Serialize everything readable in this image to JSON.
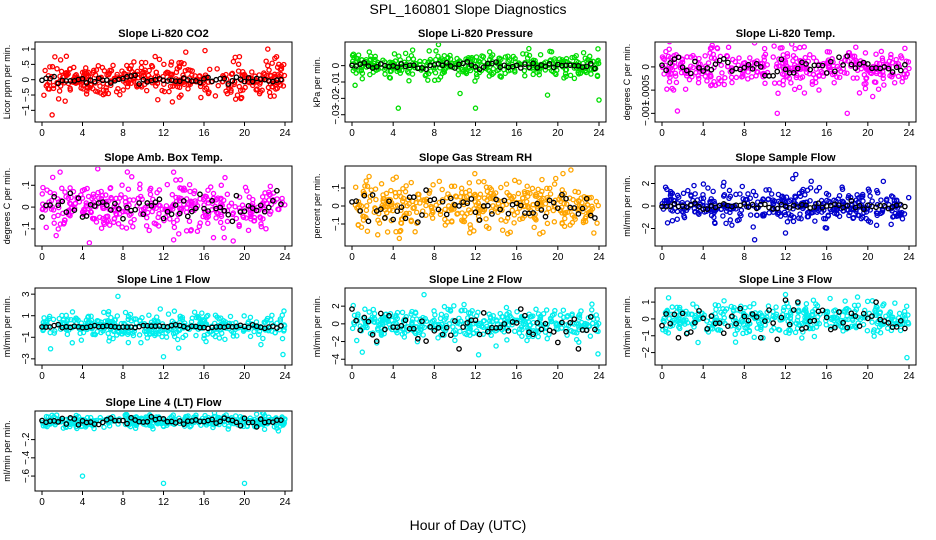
{
  "page": {
    "title": "SPL_160801  Slope Diagnostics",
    "xlabel": "Hour of Day (UTC)"
  },
  "chart_data": [
    {
      "type": "scatter",
      "title": "Slope Li-820 CO2",
      "ylabel": "Licor ppm per min.",
      "xlabel": "",
      "xlim": [
        0,
        24
      ],
      "xticks": [
        0,
        4,
        8,
        12,
        16,
        20,
        24
      ],
      "ylim": [
        -1.25,
        1.1
      ],
      "yticks": [
        -1.0,
        -0.5,
        0.0,
        0.5,
        1.0
      ],
      "colors": {
        "points": "#ff0000",
        "mean": "#000000"
      },
      "series": [
        {
          "name": "",
          "spread": 0.28,
          "outliers": [
            [
              1.0,
              -1.15
            ],
            [
              14.2,
              0.9
            ],
            [
              16.1,
              0.95
            ],
            [
              19.5,
              0.75
            ],
            [
              22.3,
              1.0
            ],
            [
              23.0,
              0.7
            ]
          ]
        }
      ],
      "mean_amplitude": 0.06
    },
    {
      "type": "scatter",
      "title": "Slope Li-820 Pressure",
      "ylabel": "kPa per min.",
      "xlabel": "",
      "xlim": [
        0,
        24
      ],
      "xticks": [
        0,
        4,
        8,
        12,
        16,
        20,
        24
      ],
      "ylim": [
        -0.032,
        0.012
      ],
      "yticks": [
        -0.03,
        -0.02,
        -0.01,
        0.0
      ],
      "colors": {
        "points": "#00dd00",
        "mean": "#000000"
      },
      "series": [
        {
          "name": "",
          "spread": 0.0035,
          "outliers": [
            [
              0.3,
              -0.012
            ],
            [
              1.0,
              -0.008
            ],
            [
              4.5,
              -0.026
            ],
            [
              7.5,
              0.009
            ],
            [
              10.5,
              -0.017
            ],
            [
              12.0,
              -0.026
            ],
            [
              19.0,
              -0.018
            ],
            [
              24.0,
              -0.021
            ]
          ]
        }
      ],
      "mean_amplitude": 0.001
    },
    {
      "type": "scatter",
      "title": "Slope Li-820 Temp.",
      "ylabel": "degrees C per min.",
      "xlabel": "",
      "xlim": [
        0,
        24
      ],
      "xticks": [
        0,
        4,
        8,
        12,
        16,
        20,
        24
      ],
      "ylim": [
        -0.0011,
        0.00045
      ],
      "yticks": [
        -0.001,
        -0.0005,
        0.0
      ],
      "colors": {
        "points": "#ff00ff",
        "mean": "#000000"
      },
      "series": [
        {
          "name": "",
          "spread": 0.00022,
          "outliers": [
            [
              1.5,
              -0.00095
            ],
            [
              11.2,
              -0.001
            ],
            [
              18.0,
              -0.001
            ],
            [
              23.6,
              0.0004
            ]
          ]
        }
      ],
      "mean_amplitude": 0.0001
    },
    {
      "type": "scatter",
      "title": "Slope Amb. Box Temp.",
      "ylabel": "degrees C per min.",
      "xlabel": "",
      "xlim": [
        0,
        24
      ],
      "xticks": [
        0,
        4,
        8,
        12,
        16,
        20,
        24
      ],
      "ylim": [
        -0.16,
        0.17
      ],
      "yticks": [
        -0.1,
        0.0,
        0.1
      ],
      "colors": {
        "points": "#ff00ff",
        "mean": "#000000"
      },
      "series": [
        {
          "name": "",
          "spread": 0.06,
          "outliers": [
            [
              13.0,
              0.16
            ],
            [
              13.0,
              -0.15
            ],
            [
              18.0,
              -0.14
            ]
          ]
        }
      ],
      "mean_amplitude": 0.03
    },
    {
      "type": "scatter",
      "title": "Slope Gas Stream RH",
      "ylabel": "percent per min.",
      "xlabel": "",
      "xlim": [
        0,
        24
      ],
      "xticks": [
        0,
        4,
        8,
        12,
        16,
        20,
        24
      ],
      "ylim": [
        -0.2,
        0.2
      ],
      "yticks": [
        -0.1,
        0.0,
        0.1
      ],
      "colors": {
        "points": "#ffa500",
        "mean": "#000000"
      },
      "series": [
        {
          "name": "",
          "spread": 0.065,
          "outliers": [
            [
              1.5,
              -0.14
            ],
            [
              2.5,
              -0.16
            ],
            [
              4.3,
              0.16
            ],
            [
              4.6,
              -0.18
            ],
            [
              20.5,
              0.18
            ],
            [
              23.5,
              -0.15
            ]
          ]
        }
      ],
      "mean_amplitude": 0.04
    },
    {
      "type": "scatter",
      "title": "Slope Sample Flow",
      "ylabel": "ml/min per min.",
      "xlabel": "",
      "xlim": [
        0,
        24
      ],
      "xticks": [
        0,
        4,
        8,
        12,
        16,
        20,
        24
      ],
      "ylim": [
        -3.2,
        3.2
      ],
      "yticks": [
        -2,
        0,
        2
      ],
      "colors": {
        "points": "#0000cc",
        "mean": "#000000"
      },
      "series": [
        {
          "name": "",
          "spread": 0.75,
          "outliers": [
            [
              9.0,
              -3.0
            ],
            [
              13.0,
              2.8
            ],
            [
              14.5,
              2.2
            ],
            [
              12.0,
              -2.4
            ]
          ]
        }
      ],
      "mean_amplitude": 0.15
    },
    {
      "type": "scatter",
      "title": "Slope Line 1 Flow",
      "ylabel": "ml/min per min.",
      "xlabel": "",
      "xlim": [
        0,
        24
      ],
      "xticks": [
        0,
        4,
        8,
        12,
        16,
        20,
        24
      ],
      "ylim": [
        -3.2,
        3.2
      ],
      "yticks": [
        -3,
        -1,
        1,
        3
      ],
      "colors": {
        "points": "#00eeee",
        "mean": "#000000"
      },
      "series": [
        {
          "name": "",
          "spread": 0.6,
          "outliers": [
            [
              7.5,
              2.8
            ],
            [
              12.0,
              -2.8
            ],
            [
              23.8,
              -2.6
            ],
            [
              13.5,
              -2.0
            ]
          ]
        }
      ],
      "mean_amplitude": 0.08
    },
    {
      "type": "scatter",
      "title": "Slope Line 2 Flow",
      "ylabel": "ml/min per min.",
      "xlabel": "",
      "xlim": [
        0,
        24
      ],
      "xticks": [
        0,
        4,
        8,
        12,
        16,
        20,
        24
      ],
      "ylim": [
        -4.2,
        3.6
      ],
      "yticks": [
        -4,
        -2,
        0,
        2
      ],
      "colors": {
        "points": "#00eeee",
        "mean": "#000000"
      },
      "series": [
        {
          "name": "",
          "spread": 0.8,
          "outliers": [
            [
              7.0,
              3.3
            ],
            [
              1.0,
              -3.2
            ],
            [
              12.3,
              -3.5
            ],
            [
              23.9,
              -3.4
            ],
            [
              14.0,
              -2.5
            ]
          ]
        }
      ],
      "mean_amplitude": 0.9
    },
    {
      "type": "scatter",
      "title": "Slope Line 3 Flow",
      "ylabel": "ml/min per min.",
      "xlabel": "",
      "xlim": [
        0,
        24
      ],
      "xticks": [
        0,
        4,
        8,
        12,
        16,
        20,
        24
      ],
      "ylim": [
        -2.5,
        1.6
      ],
      "yticks": [
        -2,
        -1,
        0,
        1
      ],
      "colors": {
        "points": "#00eeee",
        "mean": "#000000"
      },
      "series": [
        {
          "name": "",
          "spread": 0.45,
          "outliers": [
            [
              12.0,
              1.45
            ],
            [
              23.8,
              -2.3
            ],
            [
              3.5,
              -1.4
            ],
            [
              19.0,
              1.3
            ]
          ]
        }
      ],
      "mean_amplitude": 0.5
    },
    {
      "type": "scatter",
      "title": "Slope Line 4 (LT) Flow",
      "ylabel": "ml/min per min.",
      "xlabel": "",
      "xlim": [
        0,
        24
      ],
      "xticks": [
        0,
        4,
        8,
        12,
        16,
        20,
        24
      ],
      "ylim": [
        -0.72,
        0.07
      ],
      "yticks": [
        -0.6,
        -0.4,
        -0.2
      ],
      "colors": {
        "points": "#00eeee",
        "mean": "#000000"
      },
      "series": [
        {
          "name": "",
          "spread": 0.035,
          "outliers": [
            [
              4.0,
              -0.6
            ],
            [
              12.0,
              -0.68
            ],
            [
              20.0,
              -0.68
            ],
            [
              4.3,
              -0.06
            ]
          ]
        }
      ],
      "mean_amplitude": 0.02
    }
  ]
}
